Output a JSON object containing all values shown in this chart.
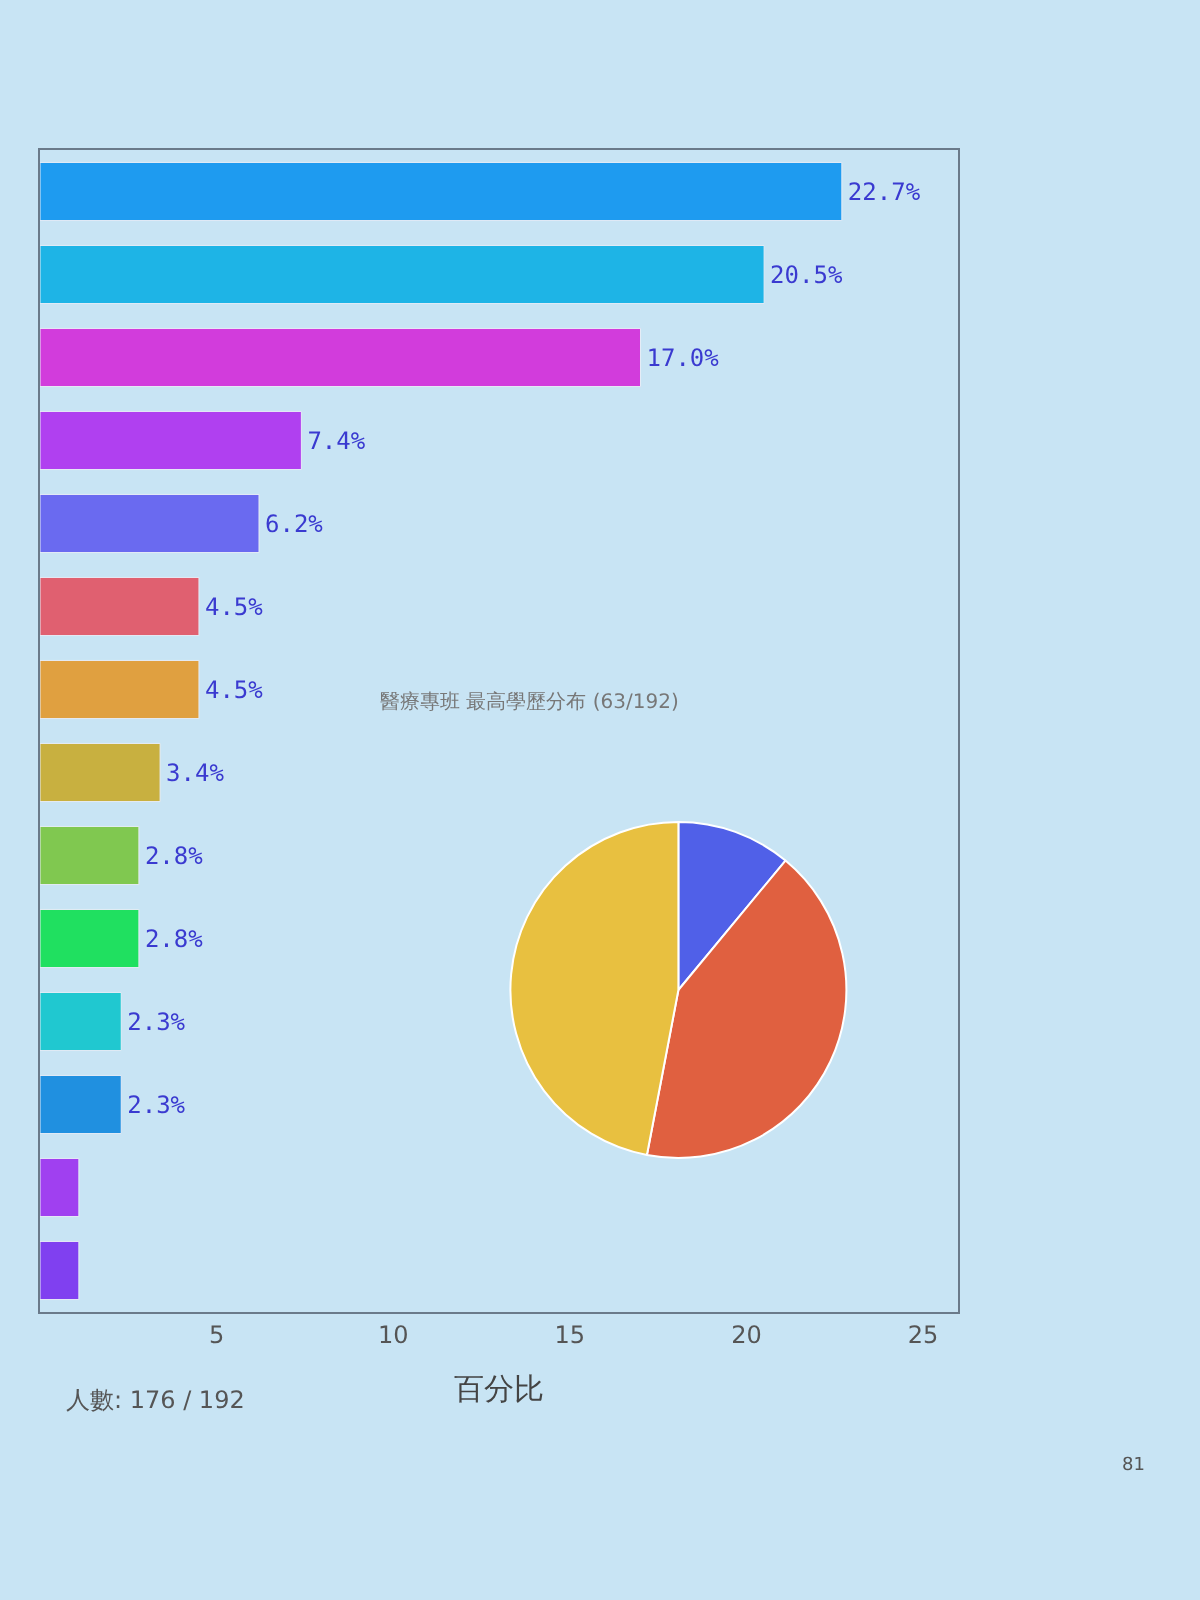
{
  "chart_data": [
    {
      "type": "bar",
      "orientation": "horizontal",
      "xlabel": "百分比",
      "categories": [
        null,
        null,
        null,
        null,
        null,
        null,
        null,
        null,
        null,
        null,
        null,
        null,
        null,
        null
      ],
      "values": [
        22.7,
        20.5,
        17.0,
        7.4,
        6.2,
        4.5,
        4.5,
        3.4,
        2.8,
        2.8,
        2.3,
        2.3,
        1.1,
        1.1
      ],
      "value_labels": [
        "22.7%",
        "20.5%",
        "17.0%",
        "7.4%",
        "6.2%",
        "4.5%",
        "4.5%",
        "3.4%",
        "2.8%",
        "2.8%",
        "2.3%",
        "2.3%",
        null,
        null
      ],
      "colors": [
        "#1e9bf0",
        "#1eb4e6",
        "#d23cdc",
        "#b040f0",
        "#6a6af0",
        "#e06070",
        "#e0a040",
        "#c8b040",
        "#80c850",
        "#20e060",
        "#20c8d0",
        "#2090e0",
        "#a040f0",
        "#8040f0"
      ],
      "xlim": [
        0,
        26
      ],
      "xticks": [
        5,
        10,
        15,
        20,
        25
      ],
      "tick_labels": "x",
      "grid": false,
      "annotations": [
        "人數: 176 / 192",
        "81"
      ]
    },
    {
      "type": "pie",
      "title": "醫療專班 最高學歷分布 (63/192)",
      "categories": [
        null,
        null,
        null
      ],
      "values": [
        11,
        42,
        47
      ],
      "colors": [
        "#5060e8",
        "#e06040",
        "#e8c040"
      ]
    }
  ]
}
